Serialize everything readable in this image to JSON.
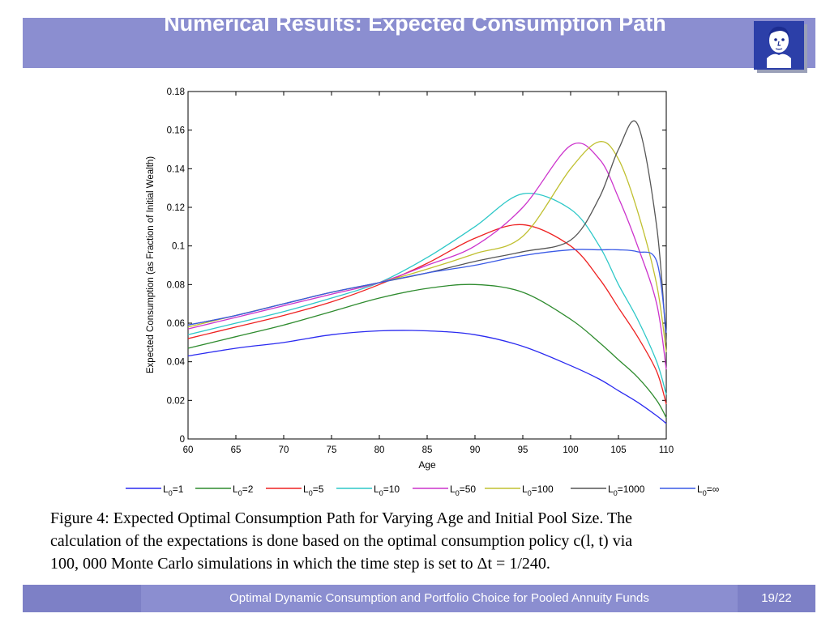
{
  "slide": {
    "title": "Numerical Results: Expected Consumption Path",
    "caption_lines": [
      "Figure 4: Expected Optimal Consumption Path for Varying Age and Initial Pool Size. The",
      "calculation of the expectations is done based on the optimal consumption policy c(l, t) via",
      "100, 000 Monte Carlo simulations in which the time step is set to Δt = 1/240."
    ],
    "footer_title": "Optimal Dynamic Consumption and Portfolio Choice for Pooled Annuity Funds",
    "page_number": "19/22"
  },
  "chart_data": {
    "type": "line",
    "title": "",
    "xlabel": "Age",
    "ylabel": "Expected Consumption (as Fraction of Initial Wealth)",
    "xlim": [
      60,
      110
    ],
    "ylim": [
      0,
      0.18
    ],
    "xticks": [
      60,
      65,
      70,
      75,
      80,
      85,
      90,
      95,
      100,
      105,
      110
    ],
    "yticks": [
      0,
      0.02,
      0.04,
      0.06,
      0.08,
      0.1,
      0.12,
      0.14,
      0.16,
      0.18
    ],
    "ytick_labels": [
      "0",
      "0.02",
      "0.04",
      "0.06",
      "0.08",
      "0.1",
      "0.12",
      "0.14",
      "0.16",
      "0.18"
    ],
    "legend_position": "bottom",
    "x": [
      60,
      65,
      70,
      75,
      80,
      85,
      90,
      95,
      100,
      103,
      105,
      107,
      109,
      110
    ],
    "series": [
      {
        "name": "L0=1",
        "sub": "0",
        "val": "=1",
        "color": "#2a2af0",
        "values": [
          0.043,
          0.047,
          0.05,
          0.054,
          0.056,
          0.056,
          0.054,
          0.048,
          0.038,
          0.031,
          0.025,
          0.019,
          0.012,
          0.008
        ]
      },
      {
        "name": "L0=2",
        "sub": "0",
        "val": "=2",
        "color": "#2e8b2e",
        "values": [
          0.047,
          0.053,
          0.059,
          0.066,
          0.073,
          0.078,
          0.08,
          0.076,
          0.062,
          0.05,
          0.041,
          0.032,
          0.02,
          0.011
        ]
      },
      {
        "name": "L0=5",
        "sub": "0",
        "val": "=5",
        "color": "#ee2222",
        "values": [
          0.052,
          0.058,
          0.064,
          0.071,
          0.08,
          0.091,
          0.104,
          0.111,
          0.1,
          0.083,
          0.068,
          0.053,
          0.035,
          0.018
        ]
      },
      {
        "name": "L0=10",
        "sub": "0",
        "val": "=10",
        "color": "#2ec8c8",
        "values": [
          0.054,
          0.06,
          0.066,
          0.073,
          0.081,
          0.094,
          0.11,
          0.127,
          0.119,
          0.1,
          0.08,
          0.062,
          0.04,
          0.023
        ]
      },
      {
        "name": "L0=50",
        "sub": "0",
        "val": "=50",
        "color": "#cc33cc",
        "values": [
          0.057,
          0.063,
          0.069,
          0.075,
          0.081,
          0.09,
          0.1,
          0.12,
          0.152,
          0.145,
          0.125,
          0.1,
          0.07,
          0.036
        ]
      },
      {
        "name": "L0=100",
        "sub": "0",
        "val": "=100",
        "color": "#c0c030",
        "values": [
          0.058,
          0.064,
          0.07,
          0.076,
          0.081,
          0.088,
          0.096,
          0.105,
          0.14,
          0.154,
          0.145,
          0.118,
          0.08,
          0.045
        ]
      },
      {
        "name": "L0=1000",
        "sub": "0",
        "val": "=1000",
        "color": "#555555",
        "values": [
          0.059,
          0.064,
          0.07,
          0.076,
          0.081,
          0.086,
          0.092,
          0.097,
          0.103,
          0.125,
          0.15,
          0.163,
          0.11,
          0.05
        ]
      },
      {
        "name": "L0=∞",
        "sub": "0",
        "val": "=∞",
        "color": "#3a5ae6",
        "values": [
          0.059,
          0.064,
          0.07,
          0.076,
          0.081,
          0.086,
          0.09,
          0.095,
          0.098,
          0.098,
          0.098,
          0.097,
          0.092,
          0.055
        ]
      }
    ]
  }
}
